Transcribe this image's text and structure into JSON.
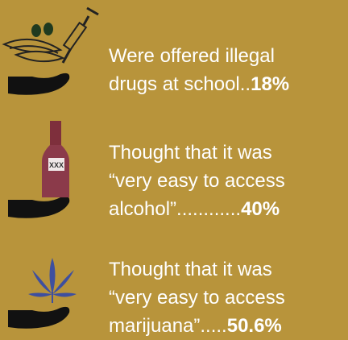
{
  "items": [
    {
      "lines": [
        "Were offered illegal",
        "drugs at school.."
      ],
      "value": "18%"
    },
    {
      "lines": [
        "Thought that it was",
        "“very easy to access",
        "alcohol”............"
      ],
      "value": "40%",
      "icon_label": "XXX"
    },
    {
      "lines": [
        "Thought that it was",
        "“very easy to access",
        "marijuana”....."
      ],
      "value": "50.6%"
    }
  ]
}
